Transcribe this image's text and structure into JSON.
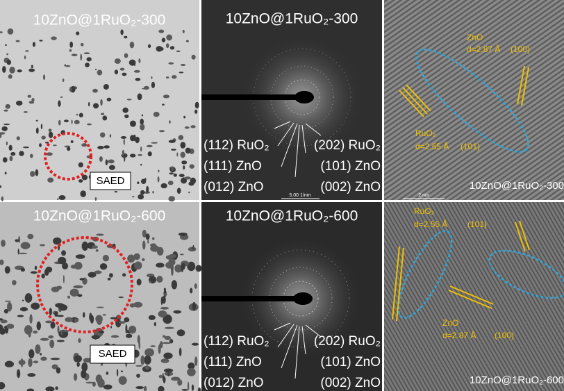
{
  "rows": [
    {
      "tem": {
        "title": "10ZnO@1RuO₂-300",
        "label": "SAED"
      },
      "saed": {
        "title": "10ZnO@1RuO₂-300",
        "scale": "5.00 1/nm",
        "planes": [
          "(112) RuO₂",
          "(111) ZnO",
          "(012) ZnO",
          "(202) RuO₂",
          "(101) ZnO",
          "(002) ZnO"
        ]
      },
      "hrtem": {
        "caption": "10ZnO@1RuO₂-300",
        "scale": "2 nm",
        "annotations": [
          {
            "phase": "ZnO",
            "d": "d=2.87 Å",
            "hkl": "(100)"
          },
          {
            "phase": "RuO₂",
            "d": "d=2.55 Å",
            "hkl": "(101)"
          }
        ]
      }
    },
    {
      "tem": {
        "title": "10ZnO@1RuO₂-600",
        "label": "SAED"
      },
      "saed": {
        "title": "10ZnO@1RuO₂-600",
        "planes": [
          "(112) RuO₂",
          "(111) ZnO",
          "(012) ZnO",
          "(202) RuO₂",
          "(101) ZnO",
          "(002) ZnO"
        ]
      },
      "hrtem": {
        "caption": "10ZnO@1RuO₂-600",
        "annotations": [
          {
            "phase": "RuO₂",
            "d": "d=2.55 Å",
            "hkl": "(101)"
          },
          {
            "phase": "ZnO",
            "d": "d=2.87 Å",
            "hkl": "(100)"
          }
        ]
      }
    }
  ]
}
